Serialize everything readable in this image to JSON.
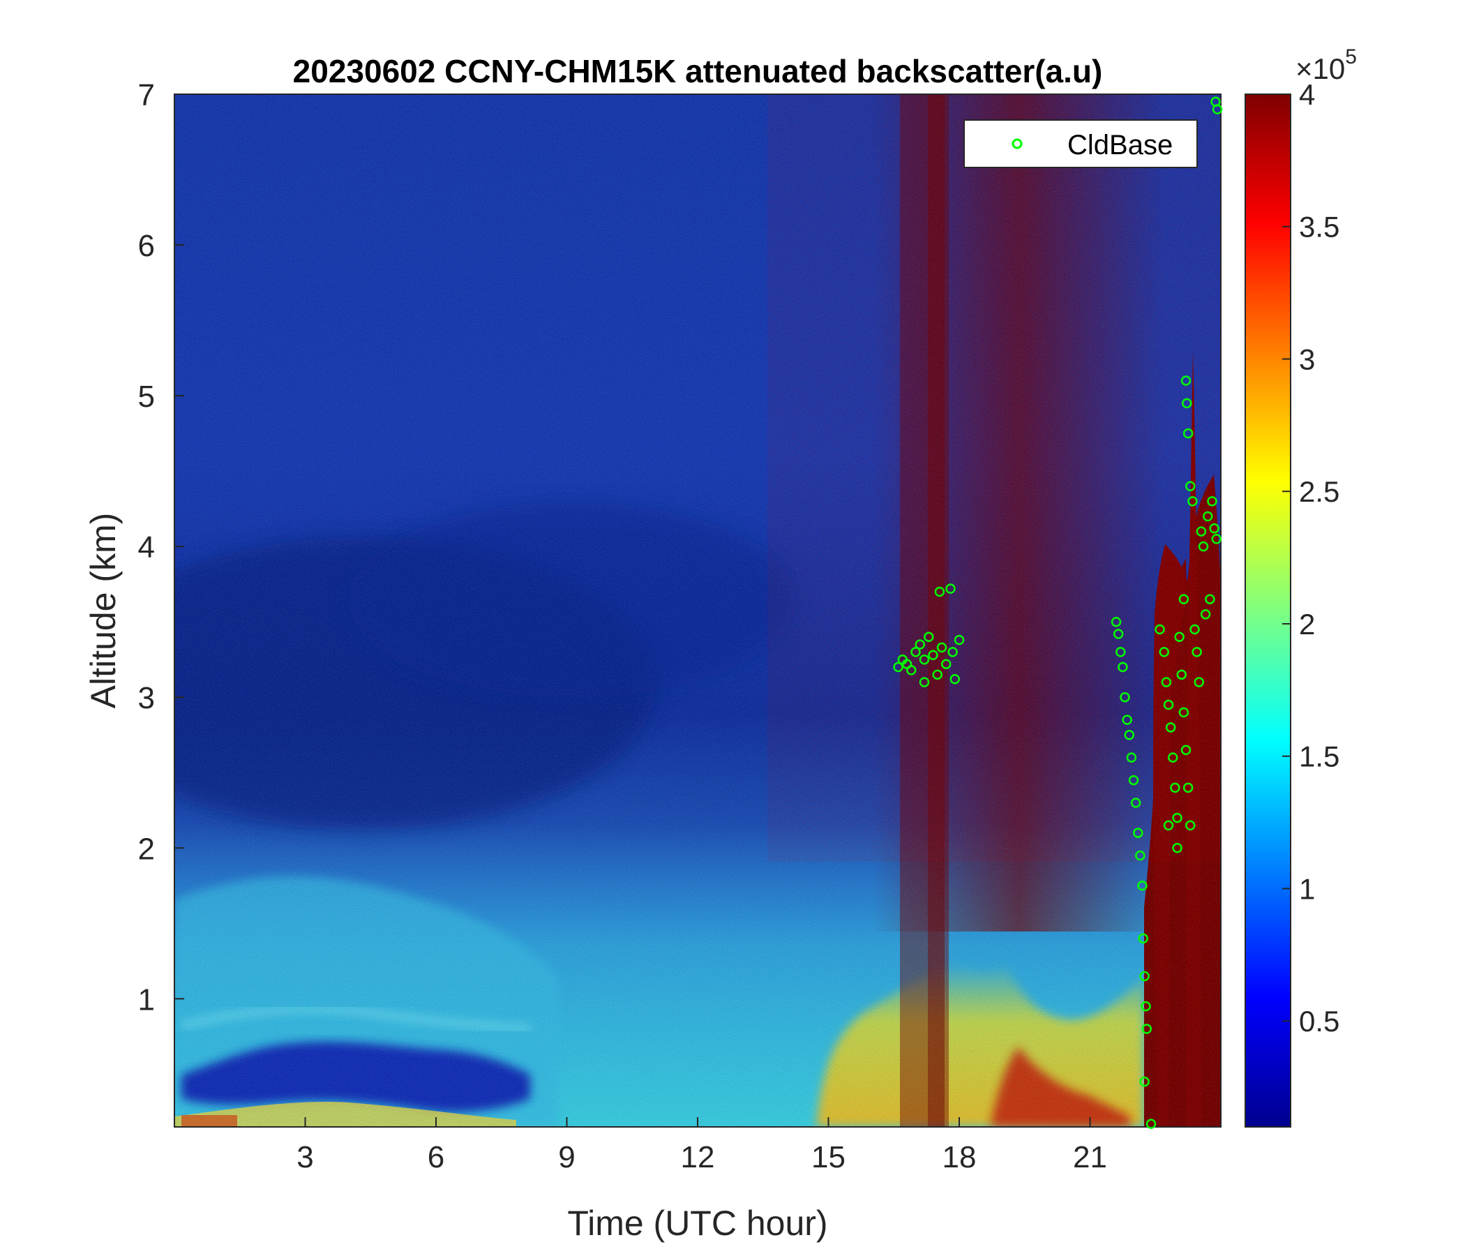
{
  "chart_data": {
    "type": "heatmap",
    "title": "20230602 CCNY-CHM15K attenuated backscatter(a.u)",
    "xlabel": "Time (UTC hour)",
    "ylabel": "Altitude (km)",
    "xlim": [
      0,
      24
    ],
    "ylim": [
      0.15,
      7
    ],
    "x_ticks": [
      3,
      6,
      9,
      12,
      15,
      18,
      21
    ],
    "y_ticks": [
      1,
      2,
      3,
      4,
      5,
      6,
      7
    ],
    "colormap": "jet",
    "colorbar": {
      "range": [
        0.1,
        4
      ],
      "ticks": [
        "0.5",
        "1",
        "1.5",
        "2",
        "2.5",
        "3",
        "3.5",
        "4"
      ],
      "tick_values": [
        0.5,
        1,
        1.5,
        2,
        2.5,
        3,
        3.5,
        4
      ],
      "multiplier": "×10",
      "exponent": "5"
    },
    "legend": {
      "position": "top-right",
      "entries": [
        "CldBase"
      ]
    },
    "cldbase_marker_color": "#00ff00",
    "series": [
      {
        "name": "CldBase",
        "points": [
          [
            16.6,
            3.2
          ],
          [
            16.7,
            3.25
          ],
          [
            16.8,
            3.22
          ],
          [
            16.9,
            3.18
          ],
          [
            17.0,
            3.3
          ],
          [
            17.1,
            3.35
          ],
          [
            17.2,
            3.25
          ],
          [
            17.3,
            3.4
          ],
          [
            17.4,
            3.28
          ],
          [
            17.5,
            3.15
          ],
          [
            17.55,
            3.7
          ],
          [
            17.6,
            3.33
          ],
          [
            17.7,
            3.22
          ],
          [
            17.8,
            3.72
          ],
          [
            17.85,
            3.3
          ],
          [
            17.9,
            3.12
          ],
          [
            18.0,
            3.38
          ],
          [
            17.2,
            3.1
          ],
          [
            21.6,
            3.5
          ],
          [
            21.65,
            3.42
          ],
          [
            21.7,
            3.3
          ],
          [
            21.75,
            3.2
          ],
          [
            21.8,
            3.0
          ],
          [
            21.85,
            2.85
          ],
          [
            21.9,
            2.75
          ],
          [
            21.95,
            2.6
          ],
          [
            22.0,
            2.45
          ],
          [
            22.05,
            2.3
          ],
          [
            22.1,
            2.1
          ],
          [
            22.15,
            1.95
          ],
          [
            22.2,
            1.75
          ],
          [
            22.22,
            1.4
          ],
          [
            22.25,
            1.15
          ],
          [
            22.28,
            0.95
          ],
          [
            22.3,
            0.8
          ],
          [
            22.25,
            0.45
          ],
          [
            22.4,
            0.17
          ],
          [
            22.6,
            3.45
          ],
          [
            22.7,
            3.3
          ],
          [
            22.75,
            3.1
          ],
          [
            22.8,
            2.95
          ],
          [
            22.85,
            2.8
          ],
          [
            22.9,
            2.6
          ],
          [
            22.95,
            2.4
          ],
          [
            23.0,
            2.2
          ],
          [
            23.05,
            3.4
          ],
          [
            23.1,
            3.15
          ],
          [
            23.15,
            2.9
          ],
          [
            23.2,
            2.65
          ],
          [
            23.25,
            2.4
          ],
          [
            23.3,
            2.15
          ],
          [
            23.0,
            2.0
          ],
          [
            22.8,
            2.15
          ],
          [
            23.15,
            3.65
          ],
          [
            23.2,
            5.1
          ],
          [
            23.22,
            4.95
          ],
          [
            23.25,
            4.75
          ],
          [
            23.3,
            4.4
          ],
          [
            23.35,
            4.3
          ],
          [
            23.4,
            3.45
          ],
          [
            23.45,
            3.3
          ],
          [
            23.5,
            3.1
          ],
          [
            23.55,
            4.1
          ],
          [
            23.6,
            4.0
          ],
          [
            23.65,
            3.55
          ],
          [
            23.7,
            4.2
          ],
          [
            23.75,
            3.65
          ],
          [
            23.8,
            4.3
          ],
          [
            23.85,
            4.12
          ],
          [
            23.9,
            4.05
          ],
          [
            23.88,
            6.95
          ],
          [
            23.92,
            6.9
          ]
        ]
      }
    ]
  }
}
